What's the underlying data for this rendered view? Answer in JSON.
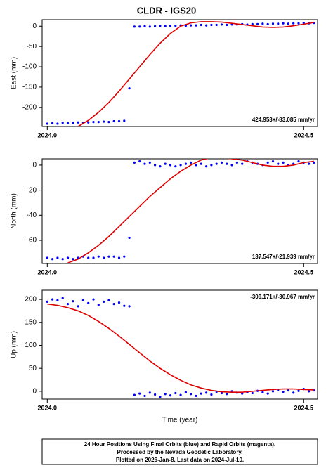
{
  "title": "CLDR - IGS20",
  "footer": [
    "24 Hour Positions Using Final Orbits (blue) and Rapid Orbits (magenta).",
    "Processed by the Nevada Geodetic Laboratory.",
    "Plotted on 2026-Jan-8. Last data on 2024-Jul-10."
  ],
  "chart_data": [
    {
      "type": "scatter",
      "ylabel": "East (mm)",
      "annotation": "424.953+/-83.085 mm/yr",
      "annotation_corner": "bottom-right",
      "xlim": [
        2023.99,
        2024.527
      ],
      "xticks": [
        {
          "value": 2024.0,
          "label": "2024.0"
        },
        2024.5
      ],
      "ylim": [
        -247,
        16
      ],
      "yticks": [
        0,
        -50,
        -100,
        -150,
        -200
      ],
      "color": "#0000ff",
      "x": [
        2024.0,
        2024.01,
        2024.02,
        2024.03,
        2024.04,
        2024.05,
        2024.06,
        2024.07,
        2024.08,
        2024.09,
        2024.1,
        2024.11,
        2024.12,
        2024.13,
        2024.14,
        2024.15,
        2024.16,
        2024.17,
        2024.18,
        2024.19,
        2024.2,
        2024.21,
        2024.22,
        2024.23,
        2024.24,
        2024.25,
        2024.26,
        2024.27,
        2024.28,
        2024.29,
        2024.3,
        2024.31,
        2024.32,
        2024.33,
        2024.34,
        2024.35,
        2024.36,
        2024.37,
        2024.38,
        2024.39,
        2024.4,
        2024.41,
        2024.42,
        2024.43,
        2024.44,
        2024.45,
        2024.46,
        2024.47,
        2024.48,
        2024.49,
        2024.5,
        2024.51,
        2024.52
      ],
      "values": [
        -240,
        -239,
        -240,
        -238,
        -239,
        -238,
        -237,
        -238,
        -237,
        -236,
        -236,
        -235,
        -236,
        -234,
        -234,
        -233,
        -153,
        -1,
        -1,
        0,
        -1,
        0,
        1,
        0,
        1,
        1,
        2,
        1,
        2,
        2,
        3,
        2,
        3,
        3,
        4,
        3,
        4,
        4,
        5,
        4,
        5,
        5,
        6,
        5,
        6,
        6,
        7,
        6,
        7,
        7,
        8,
        7,
        8
      ],
      "fit_color": "#dd0000",
      "fit_x": [
        2024.06,
        2024.08,
        2024.1,
        2024.12,
        2024.14,
        2024.16,
        2024.18,
        2024.2,
        2024.22,
        2024.24,
        2024.26,
        2024.28,
        2024.3,
        2024.32,
        2024.34,
        2024.36,
        2024.38,
        2024.4,
        2024.42,
        2024.44,
        2024.46,
        2024.48,
        2024.5,
        2024.52
      ],
      "fit_values": [
        -247,
        -232,
        -212,
        -188,
        -160,
        -130,
        -100,
        -70,
        -42,
        -18,
        0,
        8,
        11,
        11,
        10,
        7,
        4,
        1,
        -2,
        -3,
        -2,
        1,
        5,
        9
      ]
    },
    {
      "type": "scatter",
      "ylabel": "North (mm)",
      "annotation": "137.547+/-21.939 mm/yr",
      "annotation_corner": "bottom-right",
      "xlim": [
        2023.99,
        2024.527
      ],
      "xticks": [
        {
          "value": 2024.0,
          "label": "2024.0"
        },
        2024.5
      ],
      "ylim": [
        -78.5,
        5
      ],
      "yticks": [
        0,
        -20,
        -40,
        -60
      ],
      "color": "#0000ff",
      "x": [
        2024.0,
        2024.01,
        2024.02,
        2024.03,
        2024.04,
        2024.05,
        2024.06,
        2024.07,
        2024.08,
        2024.09,
        2024.1,
        2024.11,
        2024.12,
        2024.13,
        2024.14,
        2024.15,
        2024.16,
        2024.17,
        2024.18,
        2024.19,
        2024.2,
        2024.21,
        2024.22,
        2024.23,
        2024.24,
        2024.25,
        2024.26,
        2024.27,
        2024.28,
        2024.29,
        2024.3,
        2024.31,
        2024.32,
        2024.33,
        2024.34,
        2024.35,
        2024.36,
        2024.37,
        2024.38,
        2024.39,
        2024.4,
        2024.41,
        2024.42,
        2024.43,
        2024.44,
        2024.45,
        2024.46,
        2024.47,
        2024.48,
        2024.49,
        2024.5,
        2024.51,
        2024.52
      ],
      "values": [
        -74,
        -75,
        -74,
        -75,
        -74,
        -75,
        -74,
        -73,
        -74,
        -74,
        -73,
        -74,
        -73,
        -73,
        -74,
        -73,
        -58,
        2,
        3,
        1,
        2,
        0,
        -1,
        1,
        0,
        -1,
        0,
        1,
        2,
        0,
        1,
        -1,
        0,
        1,
        2,
        1,
        0,
        2,
        1,
        3,
        2,
        1,
        0,
        2,
        3,
        1,
        2,
        0,
        1,
        3,
        2,
        1,
        2
      ],
      "fit_color": "#dd0000",
      "fit_x": [
        2024.04,
        2024.06,
        2024.08,
        2024.1,
        2024.12,
        2024.14,
        2024.16,
        2024.18,
        2024.2,
        2024.22,
        2024.24,
        2024.26,
        2024.28,
        2024.3,
        2024.32,
        2024.34,
        2024.36,
        2024.38,
        2024.4,
        2024.42,
        2024.44,
        2024.46,
        2024.48,
        2024.5,
        2024.52
      ],
      "fit_values": [
        -78,
        -75,
        -70,
        -64,
        -57,
        -49,
        -41,
        -33,
        -25,
        -18,
        -11,
        -5,
        0,
        4,
        6,
        6,
        5,
        4,
        2,
        0,
        -1,
        -1,
        0,
        2,
        3
      ]
    },
    {
      "type": "scatter",
      "ylabel": "Up (mm)",
      "xlabel": "Time (year)",
      "annotation": "-309.171+/-30.967 mm/yr",
      "annotation_corner": "top-right",
      "xlim": [
        2023.99,
        2024.527
      ],
      "xticks": [
        {
          "value": 2024.0,
          "label": "2024.0"
        },
        2024.5
      ],
      "ylim": [
        -17,
        220
      ],
      "yticks": [
        200,
        150,
        100,
        50,
        0
      ],
      "color": "#0000ff",
      "x": [
        2024.0,
        2024.01,
        2024.02,
        2024.03,
        2024.04,
        2024.05,
        2024.06,
        2024.07,
        2024.08,
        2024.09,
        2024.1,
        2024.11,
        2024.12,
        2024.13,
        2024.14,
        2024.15,
        2024.16,
        2024.17,
        2024.18,
        2024.19,
        2024.2,
        2024.21,
        2024.22,
        2024.23,
        2024.24,
        2024.25,
        2024.26,
        2024.27,
        2024.28,
        2024.29,
        2024.3,
        2024.31,
        2024.32,
        2024.33,
        2024.34,
        2024.35,
        2024.36,
        2024.37,
        2024.38,
        2024.39,
        2024.4,
        2024.41,
        2024.42,
        2024.43,
        2024.44,
        2024.45,
        2024.46,
        2024.47,
        2024.48,
        2024.49,
        2024.5,
        2024.51,
        2024.52
      ],
      "values": [
        195,
        200,
        198,
        203,
        190,
        196,
        185,
        198,
        192,
        200,
        188,
        195,
        198,
        190,
        193,
        186,
        185,
        -8,
        -5,
        -10,
        -3,
        -7,
        -12,
        -6,
        -9,
        -4,
        -8,
        -2,
        -6,
        -10,
        -5,
        -3,
        -7,
        -1,
        -4,
        -6,
        0,
        -3,
        -5,
        -2,
        -4,
        1,
        -2,
        -5,
        0,
        3,
        -1,
        2,
        -3,
        1,
        5,
        0,
        2
      ],
      "fit_color": "#dd0000",
      "fit_x": [
        2024.0,
        2024.02,
        2024.04,
        2024.06,
        2024.08,
        2024.1,
        2024.12,
        2024.14,
        2024.16,
        2024.18,
        2024.2,
        2024.22,
        2024.24,
        2024.26,
        2024.28,
        2024.3,
        2024.32,
        2024.34,
        2024.36,
        2024.38,
        2024.4,
        2024.42,
        2024.44,
        2024.46,
        2024.48,
        2024.5,
        2024.52
      ],
      "fit_values": [
        190,
        187,
        182,
        175,
        165,
        152,
        137,
        120,
        102,
        84,
        66,
        50,
        36,
        24,
        14,
        7,
        2,
        -1,
        -2,
        -2,
        0,
        2,
        4,
        5,
        5,
        4,
        3
      ]
    }
  ]
}
